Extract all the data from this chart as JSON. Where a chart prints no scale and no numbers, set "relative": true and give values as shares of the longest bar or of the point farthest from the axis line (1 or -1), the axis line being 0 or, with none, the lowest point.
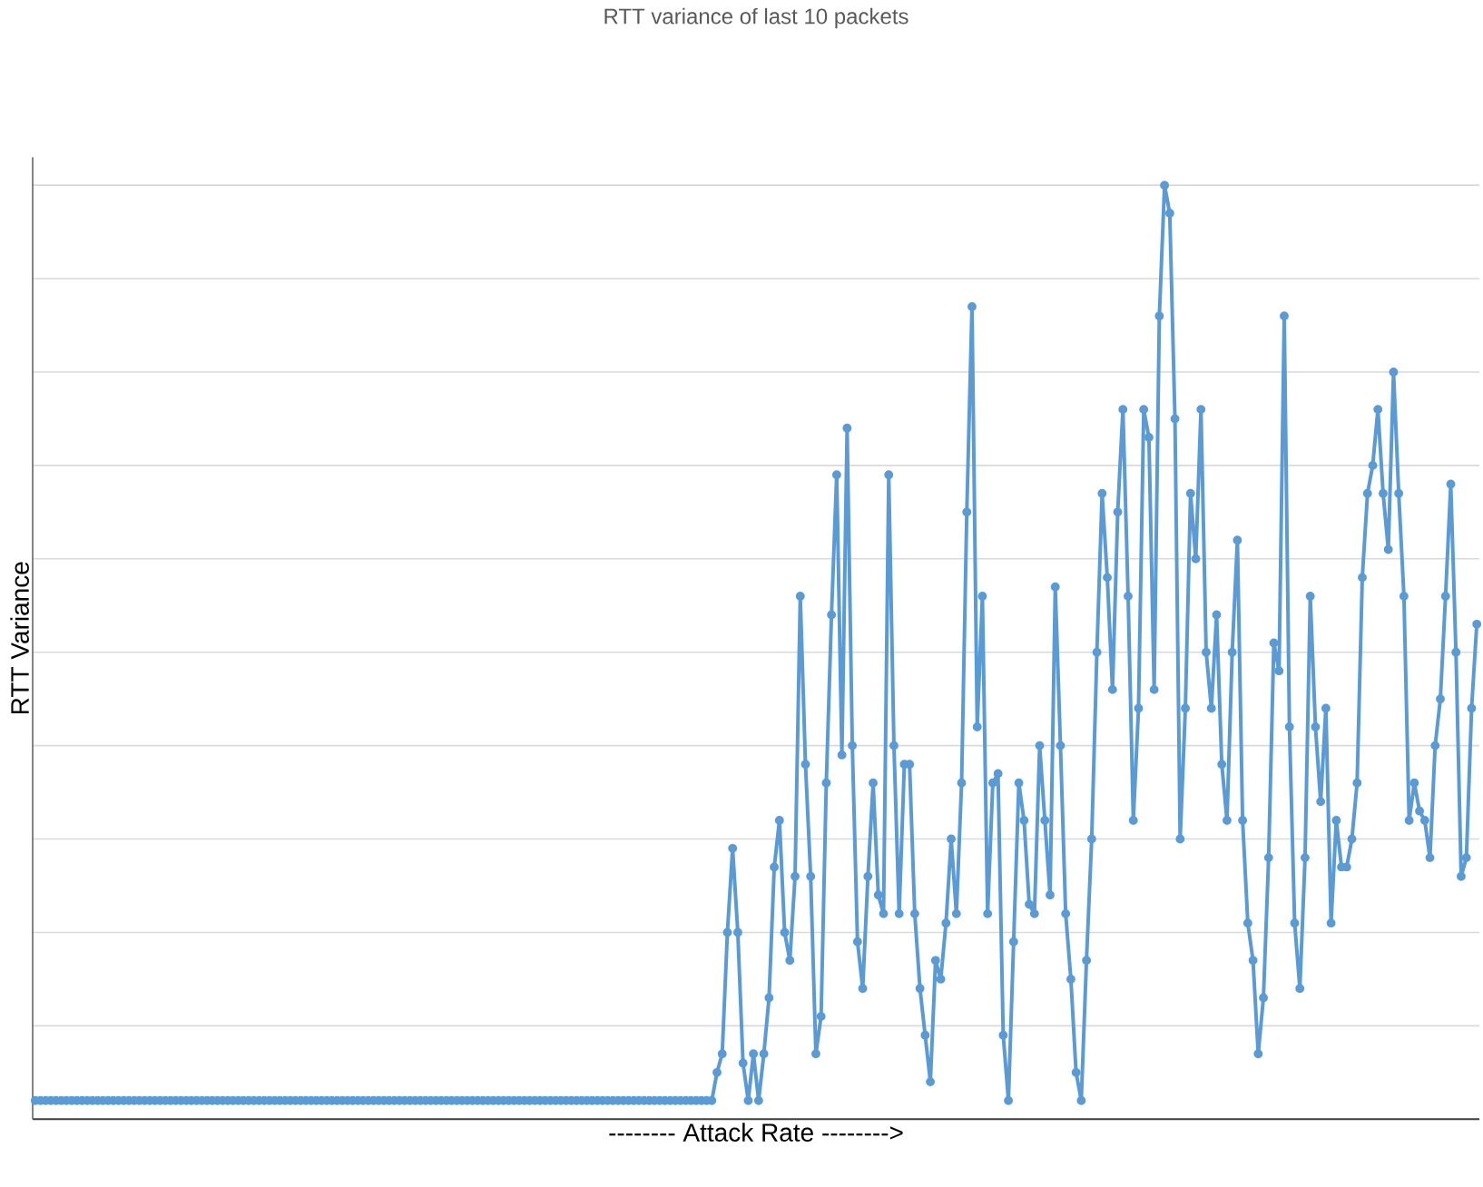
{
  "chart_data": {
    "type": "line",
    "title": "RTT variance of last 10 packets",
    "xlabel": "-------- Attack Rate -------->",
    "ylabel": "RTT Variance",
    "relative": true,
    "grid": "y",
    "marker": "circle",
    "line_style": "solid",
    "categories": [
      null,
      null,
      null,
      null,
      null,
      null,
      null,
      null,
      null,
      null,
      null,
      null,
      null,
      null,
      null,
      null,
      null,
      null,
      null,
      null,
      null,
      null,
      null,
      null,
      null,
      null,
      null,
      null,
      null,
      null,
      null,
      null,
      null,
      null,
      null,
      null,
      null,
      null,
      null,
      null,
      null,
      null,
      null,
      null,
      null,
      null,
      null,
      null,
      null,
      null,
      null,
      null,
      null,
      null,
      null,
      null,
      null,
      null,
      null,
      null,
      null,
      null,
      null,
      null,
      null,
      null,
      null,
      null,
      null,
      null,
      null,
      null,
      null,
      null,
      null,
      null,
      null,
      null,
      null,
      null,
      null,
      null,
      null,
      null,
      null,
      null,
      null,
      null,
      null,
      null,
      null,
      null,
      null,
      null,
      null,
      null,
      null,
      null,
      null,
      null,
      null,
      null,
      null,
      null,
      null,
      null,
      null,
      null,
      null,
      null,
      null,
      null,
      null,
      null,
      null,
      null,
      null,
      null,
      null,
      null,
      null,
      null,
      null,
      null,
      null,
      null,
      null,
      null,
      null,
      null,
      null,
      null,
      null,
      null,
      null,
      null,
      null,
      null,
      null,
      null,
      null,
      null,
      null,
      null,
      null,
      null,
      null,
      null,
      null,
      null,
      null,
      null,
      null,
      null,
      null,
      null,
      null,
      null,
      null,
      null,
      null,
      null,
      null,
      null,
      null,
      null,
      null,
      null,
      null,
      null,
      null,
      null,
      null,
      null,
      null,
      null,
      null,
      null,
      null,
      null,
      null,
      null,
      null,
      null,
      null,
      null,
      null,
      null,
      null,
      null,
      null,
      null,
      null,
      null,
      null,
      null,
      null,
      null,
      null,
      null,
      null,
      null,
      null,
      null,
      null,
      null,
      null,
      null,
      null,
      null,
      null,
      null,
      null,
      null,
      null,
      null,
      null,
      null,
      null,
      null,
      null,
      null,
      null,
      null,
      null,
      null,
      null,
      null,
      null,
      null,
      null,
      null,
      null,
      null,
      null,
      null,
      null,
      null,
      null,
      null,
      null,
      null,
      null,
      null,
      null,
      null,
      null,
      null,
      null,
      null,
      null,
      null,
      null,
      null,
      null,
      null,
      null,
      null,
      null,
      null,
      null,
      null,
      null,
      null,
      null,
      null,
      null,
      null,
      null,
      null,
      null,
      null,
      null,
      null,
      null,
      null,
      null,
      null
    ],
    "series": [
      {
        "color": "#5b9bd5",
        "values": [
          0.02,
          0.02,
          0.02,
          0.02,
          0.02,
          0.02,
          0.02,
          0.02,
          0.02,
          0.02,
          0.02,
          0.02,
          0.02,
          0.02,
          0.02,
          0.02,
          0.02,
          0.02,
          0.02,
          0.02,
          0.02,
          0.02,
          0.02,
          0.02,
          0.02,
          0.02,
          0.02,
          0.02,
          0.02,
          0.02,
          0.02,
          0.02,
          0.02,
          0.02,
          0.02,
          0.02,
          0.02,
          0.02,
          0.02,
          0.02,
          0.02,
          0.02,
          0.02,
          0.02,
          0.02,
          0.02,
          0.02,
          0.02,
          0.02,
          0.02,
          0.02,
          0.02,
          0.02,
          0.02,
          0.02,
          0.02,
          0.02,
          0.02,
          0.02,
          0.02,
          0.02,
          0.02,
          0.02,
          0.02,
          0.02,
          0.02,
          0.02,
          0.02,
          0.02,
          0.02,
          0.02,
          0.02,
          0.02,
          0.02,
          0.02,
          0.02,
          0.02,
          0.02,
          0.02,
          0.02,
          0.02,
          0.02,
          0.02,
          0.02,
          0.02,
          0.02,
          0.02,
          0.02,
          0.02,
          0.02,
          0.02,
          0.02,
          0.02,
          0.02,
          0.02,
          0.02,
          0.02,
          0.02,
          0.02,
          0.02,
          0.02,
          0.02,
          0.02,
          0.02,
          0.02,
          0.02,
          0.02,
          0.02,
          0.02,
          0.02,
          0.02,
          0.02,
          0.02,
          0.02,
          0.02,
          0.02,
          0.02,
          0.02,
          0.02,
          0.02,
          0.02,
          0.02,
          0.02,
          0.02,
          0.02,
          0.02,
          0.02,
          0.02,
          0.02,
          0.02,
          0.02,
          0.05,
          0.07,
          0.2,
          0.29,
          0.2,
          0.06,
          0.02,
          0.07,
          0.02,
          0.07,
          0.13,
          0.27,
          0.32,
          0.2,
          0.17,
          0.26,
          0.56,
          0.38,
          0.26,
          0.07,
          0.11,
          0.36,
          0.54,
          0.69,
          0.39,
          0.74,
          0.4,
          0.19,
          0.14,
          0.26,
          0.36,
          0.24,
          0.22,
          0.69,
          0.4,
          0.22,
          0.38,
          0.38,
          0.22,
          0.14,
          0.09,
          0.04,
          0.17,
          0.15,
          0.21,
          0.3,
          0.22,
          0.36,
          0.65,
          0.87,
          0.42,
          0.56,
          0.22,
          0.36,
          0.37,
          0.09,
          0.02,
          0.19,
          0.36,
          0.32,
          0.23,
          0.22,
          0.4,
          0.32,
          0.24,
          0.57,
          0.4,
          0.22,
          0.15,
          0.05,
          0.02,
          0.17,
          0.3,
          0.5,
          0.67,
          0.58,
          0.46,
          0.65,
          0.76,
          0.56,
          0.32,
          0.44,
          0.76,
          0.73,
          0.46,
          0.86,
          1.0,
          0.97,
          0.75,
          0.3,
          0.44,
          0.67,
          0.6,
          0.76,
          0.5,
          0.44,
          0.54,
          0.38,
          0.32,
          0.5,
          0.62,
          0.32,
          0.21,
          0.17,
          0.07,
          0.13,
          0.28,
          0.51,
          0.48,
          0.86,
          0.42,
          0.21,
          0.14,
          0.28,
          0.56,
          0.42,
          0.34,
          0.44,
          0.21,
          0.32,
          0.27,
          0.27,
          0.3,
          0.36,
          0.58,
          0.67,
          0.7,
          0.76,
          0.67,
          0.61,
          0.8,
          0.67,
          0.56,
          0.32,
          0.36,
          0.33,
          0.32,
          0.28,
          0.4,
          0.45,
          0.56,
          0.68,
          0.5,
          0.26,
          0.28,
          0.44,
          0.53
        ]
      }
    ]
  }
}
